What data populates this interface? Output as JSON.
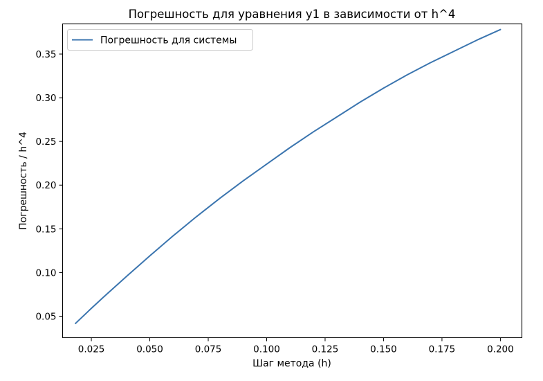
{
  "chart_data": {
    "type": "line",
    "title": "Погрешность для уравнения y1 в зависимости от h^4",
    "xlabel": "Шаг метода (h)",
    "ylabel": "Погрешность / h^4",
    "xlim": [
      0.0127,
      0.2092
    ],
    "ylim": [
      0.0254,
      0.3845
    ],
    "xticks": [
      0.025,
      0.05,
      0.075,
      0.1,
      0.125,
      0.15,
      0.175,
      0.2
    ],
    "xtick_labels": [
      "0.025",
      "0.050",
      "0.075",
      "0.100",
      "0.125",
      "0.150",
      "0.175",
      "0.200"
    ],
    "yticks": [
      0.05,
      0.1,
      0.15,
      0.2,
      0.25,
      0.3,
      0.35
    ],
    "ytick_labels": [
      "0.05",
      "0.10",
      "0.15",
      "0.20",
      "0.25",
      "0.30",
      "0.35"
    ],
    "legend_position": "top-left",
    "grid": false,
    "series": [
      {
        "name": "Погрешность для системы",
        "color": "#3b75af",
        "x": [
          0.0182,
          0.025,
          0.03,
          0.04,
          0.05,
          0.06,
          0.07,
          0.08,
          0.09,
          0.1,
          0.11,
          0.12,
          0.13,
          0.14,
          0.15,
          0.16,
          0.17,
          0.18,
          0.19,
          0.2
        ],
        "y": [
          0.0417,
          0.059,
          0.0714,
          0.0955,
          0.119,
          0.142,
          0.164,
          0.185,
          0.205,
          0.224,
          0.243,
          0.261,
          0.278,
          0.295,
          0.311,
          0.326,
          0.34,
          0.353,
          0.366,
          0.378
        ]
      }
    ]
  }
}
